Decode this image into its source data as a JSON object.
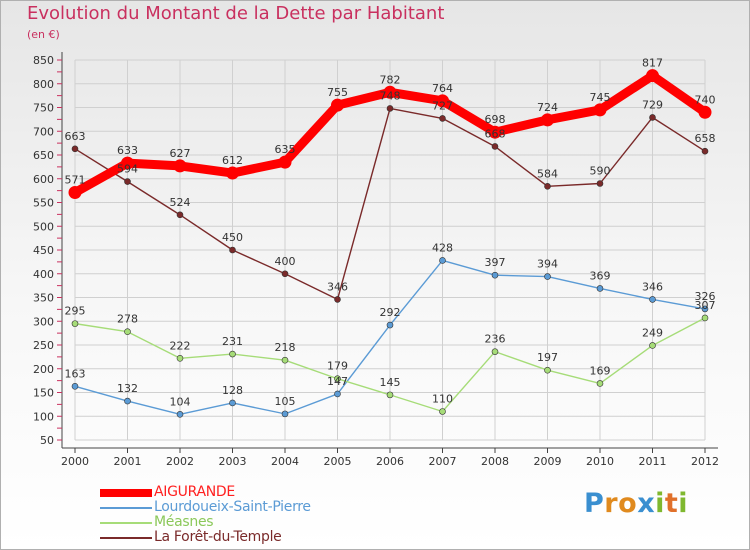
{
  "header": {
    "title": "Evolution du Montant de la Dette par Habitant",
    "subtitle": "(en €)"
  },
  "brand": {
    "letters": [
      "P",
      "r",
      "o",
      "x",
      "i",
      "t",
      "i"
    ],
    "colors": [
      "#3a8fd0",
      "#e08a1e",
      "#e08a1e",
      "#3a8fd0",
      "#7fb82f",
      "#e0702a",
      "#7fb82f"
    ]
  },
  "chart_data": {
    "type": "line",
    "title": "Evolution du Montant de la Dette par Habitant",
    "subtitle": "(en €)",
    "xlabel": "",
    "ylabel": "",
    "x": [
      "2000",
      "2001",
      "2002",
      "2003",
      "2004",
      "2005",
      "2006",
      "2007",
      "2008",
      "2009",
      "2010",
      "2011",
      "2012"
    ],
    "ylim": [
      50,
      850
    ],
    "yticks": [
      50,
      100,
      150,
      200,
      250,
      300,
      350,
      400,
      450,
      500,
      550,
      600,
      650,
      700,
      750,
      800,
      850
    ],
    "grid": true,
    "legend_position": "bottom-left",
    "series": [
      {
        "name": "AIGURANDE",
        "color": "#ff0000",
        "emphasis": true,
        "values": [
          571,
          633,
          627,
          612,
          635,
          755,
          782,
          764,
          698,
          724,
          745,
          817,
          740
        ],
        "labels": [
          "571",
          "633",
          "627",
          "612",
          "635",
          "755",
          "782",
          "764",
          "698",
          "724",
          "745",
          "817",
          "740"
        ]
      },
      {
        "name": "Lourdoueix-Saint-Pierre",
        "color": "#5b9bd5",
        "values": [
          163,
          132,
          104,
          128,
          105,
          147,
          292,
          428,
          397,
          394,
          369,
          346,
          326
        ],
        "labels": [
          "163",
          "132",
          "104",
          "128",
          "105",
          "147",
          "292",
          "428",
          "397",
          "394",
          "369",
          "346",
          "326"
        ]
      },
      {
        "name": "Méasnes",
        "color": "#a6dc78",
        "values": [
          295,
          278,
          222,
          231,
          218,
          179,
          145,
          110,
          236,
          197,
          169,
          249,
          307
        ],
        "labels": [
          "295",
          "278",
          "222",
          "231",
          "218",
          "179",
          "145",
          "110",
          "236",
          "197",
          "169",
          "249",
          "307"
        ]
      },
      {
        "name": "La Forêt-du-Temple",
        "color": "#7a2a2a",
        "values": [
          663,
          594,
          524,
          450,
          400,
          346,
          748,
          727,
          668,
          584,
          590,
          729,
          658
        ],
        "labels": [
          "663",
          "594",
          "524",
          "450",
          "400",
          "346",
          "748",
          "727",
          "668",
          "584",
          "590",
          "729",
          "658"
        ]
      }
    ]
  }
}
